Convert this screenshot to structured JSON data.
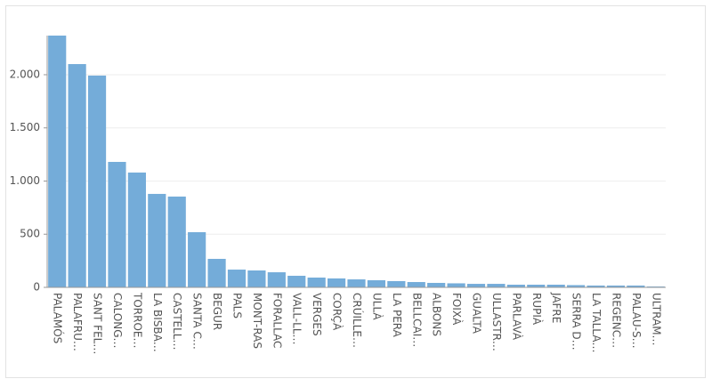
{
  "chart_data": {
    "type": "bar",
    "categories": [
      "PALAMÓS",
      "PALAFRU…",
      "SANT FEL…",
      "CALONG…",
      "TORROE…",
      "LA BISBA…",
      "CASTELL…",
      "SANTA C…",
      "BEGUR",
      "PALS",
      "MONT-RAS",
      "FORALLAC",
      "VALL-LL…",
      "VERGES",
      "CORÇÀ",
      "CRÚILLE…",
      "ULLÀ",
      "LA PERA",
      "BELLCAI…",
      "ALBONS",
      "FOIXÀ",
      "GUALTA",
      "ULLASTR…",
      "PARLAVÀ",
      "RUPIÀ",
      "JAFRE",
      "SERRA D…",
      "LA TALLA…",
      "REGENC…",
      "PALAU-S…",
      "ULTRAM…"
    ],
    "values": [
      2368,
      2100,
      1992,
      1180,
      1080,
      879,
      854,
      519,
      268,
      167,
      159,
      142,
      109,
      92,
      84,
      75,
      67,
      59,
      50,
      42,
      38,
      33,
      33,
      25,
      25,
      25,
      21,
      17,
      17,
      17,
      8
    ],
    "color": "#74acd9",
    "ylim": [
      0,
      2368
    ],
    "yticks": [
      0,
      500,
      {
        "value": 1000,
        "label": "1.000"
      },
      {
        "value": 1500,
        "label": "1.500"
      },
      {
        "value": 2000,
        "label": "2.000"
      }
    ],
    "grid": true
  }
}
